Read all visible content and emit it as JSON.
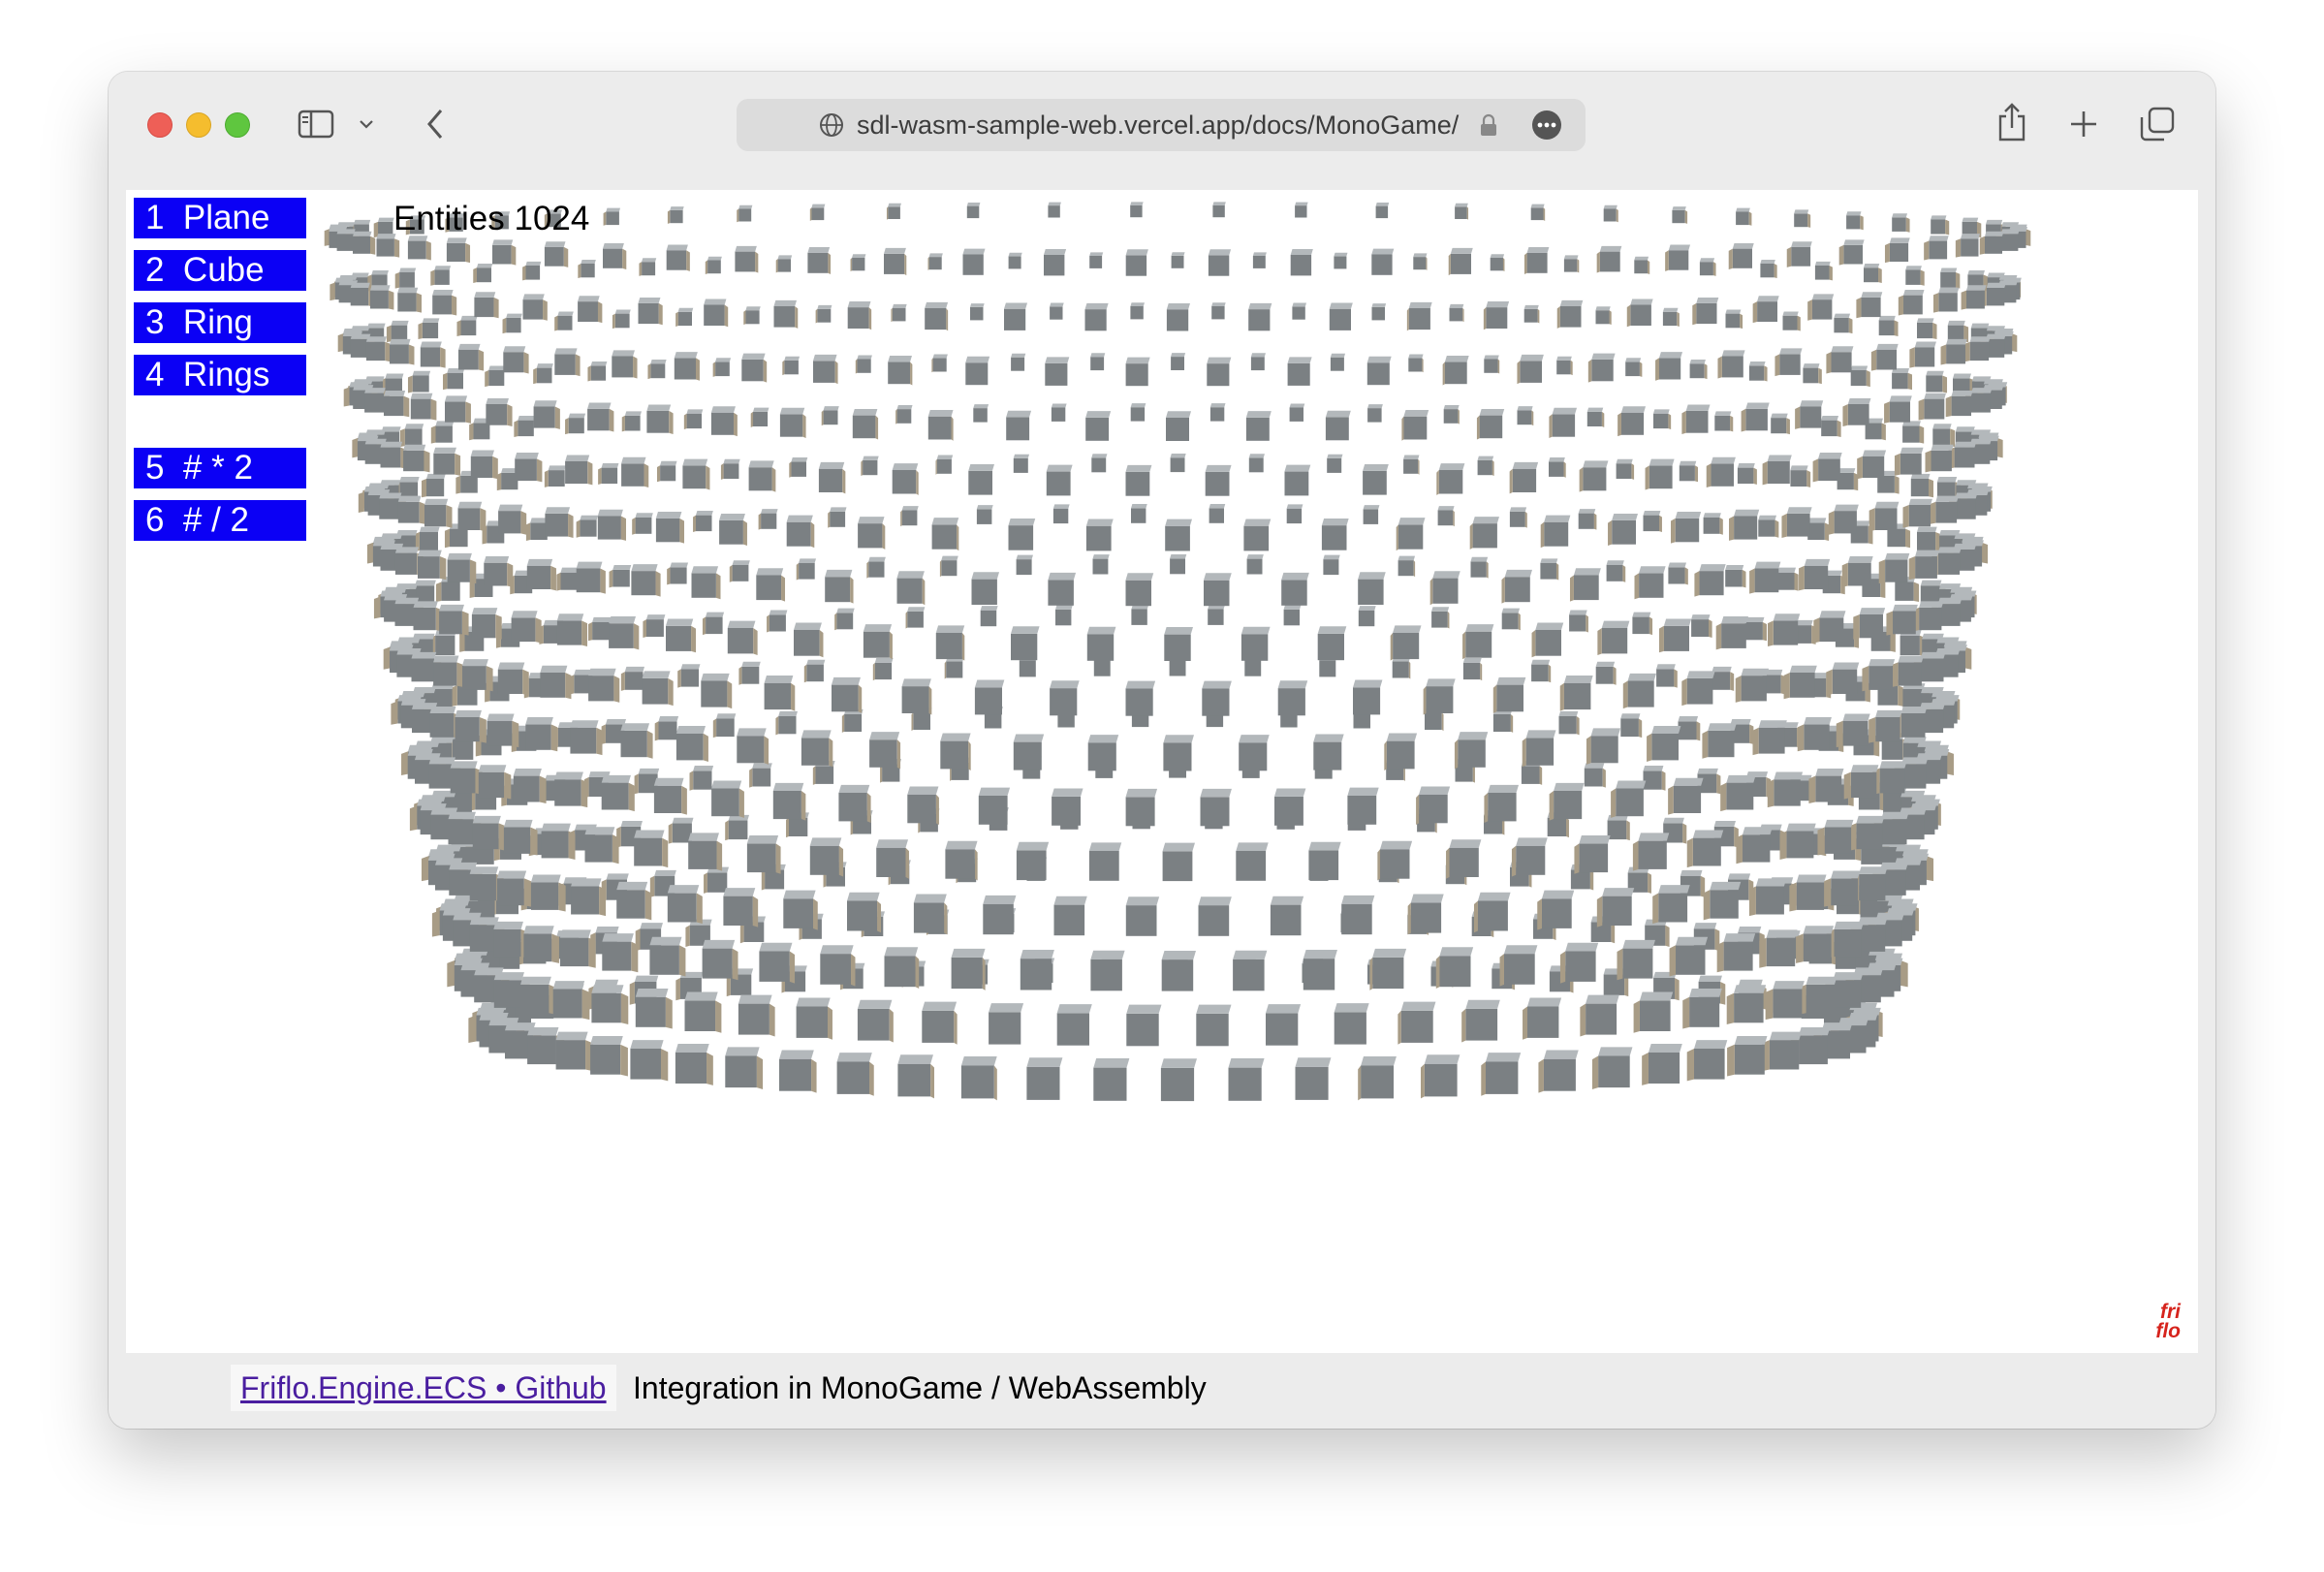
{
  "browser": {
    "url": "sdl-wasm-sample-web.vercel.app/docs/MonoGame/"
  },
  "menu": [
    {
      "label": "1  Plane"
    },
    {
      "label": "2  Cube"
    },
    {
      "label": "3  Ring"
    },
    {
      "label": "4  Rings"
    },
    {
      "label": "5  # * 2"
    },
    {
      "label": "6  # / 2"
    }
  ],
  "stats": {
    "entities_label": "Entities 1024",
    "entity_count": 1024
  },
  "scene": {
    "shape": "rings",
    "cube_colors": {
      "top": "#b3b8bb",
      "front": "#7b8083",
      "side": "#a89c86"
    }
  },
  "logo": {
    "line1": "fri",
    "line2": "flo"
  },
  "footer": {
    "link_text": "Friflo.Engine.ECS • Github",
    "description": "Integration in MonoGame / WebAssembly"
  }
}
